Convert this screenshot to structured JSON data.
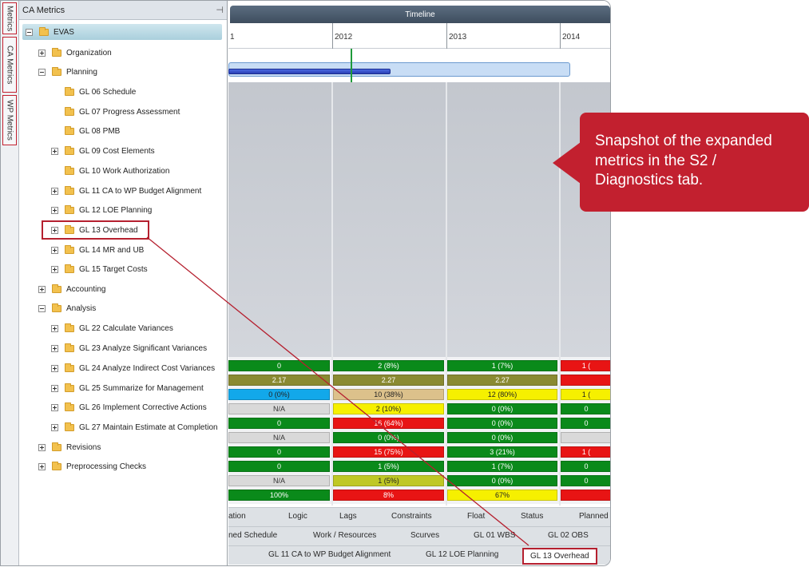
{
  "side_tabs": [
    "Metrics",
    "CA Metrics",
    "WP Metrics"
  ],
  "tree": {
    "header": "CA Metrics",
    "pin_glyph": "⊣",
    "items": [
      {
        "label": "EVAS",
        "expander": "minus"
      },
      {
        "label": "Organization",
        "expander": "plus"
      },
      {
        "label": "Planning",
        "expander": "minus"
      },
      {
        "label": "GL 06 Schedule",
        "expander": "none"
      },
      {
        "label": "GL 07 Progress Assessment",
        "expander": "none"
      },
      {
        "label": "GL 08 PMB",
        "expander": "none"
      },
      {
        "label": "GL 09 Cost Elements",
        "expander": "plus"
      },
      {
        "label": "GL 10 Work Authorization",
        "expander": "none"
      },
      {
        "label": "GL 11 CA to WP Budget Alignment",
        "expander": "plus"
      },
      {
        "label": "GL 12 LOE Planning",
        "expander": "plus"
      },
      {
        "label": "GL 13 Overhead",
        "expander": "plus"
      },
      {
        "label": "GL 14 MR and UB",
        "expander": "plus"
      },
      {
        "label": "GL 15 Target Costs",
        "expander": "plus"
      },
      {
        "label": "Accounting",
        "expander": "plus"
      },
      {
        "label": "Analysis",
        "expander": "minus"
      },
      {
        "label": "GL 22 Calculate Variances",
        "expander": "plus"
      },
      {
        "label": "GL 23 Analyze Significant Variances",
        "expander": "plus"
      },
      {
        "label": "GL 24 Analyze Indirect Cost Variances",
        "expander": "plus"
      },
      {
        "label": "GL 25 Summarize for Management",
        "expander": "plus"
      },
      {
        "label": "GL 26 Implement Corrective Actions",
        "expander": "plus"
      },
      {
        "label": "GL 27 Maintain Estimate at Completion",
        "expander": "plus"
      },
      {
        "label": "Revisions",
        "expander": "plus"
      },
      {
        "label": "Preprocessing Checks",
        "expander": "plus"
      }
    ]
  },
  "timeline": {
    "title": "Timeline",
    "years": [
      "1",
      "2012",
      "2013",
      "2014"
    ]
  },
  "metrics_rows": [
    [
      {
        "t": "0",
        "c": "green"
      },
      {
        "t": "2 (8%)",
        "c": "green"
      },
      {
        "t": "1 (7%)",
        "c": "green"
      },
      {
        "t": "1 (",
        "c": "red"
      }
    ],
    [
      {
        "t": "2.17",
        "c": "olive"
      },
      {
        "t": "2.27",
        "c": "olive"
      },
      {
        "t": "2.27",
        "c": "olive"
      },
      {
        "t": "",
        "c": "red"
      }
    ],
    [
      {
        "t": "0 (0%)",
        "c": "blue"
      },
      {
        "t": "10 (38%)",
        "c": "tan"
      },
      {
        "t": "12 (80%)",
        "c": "yellow"
      },
      {
        "t": "1 (",
        "c": "yellow"
      }
    ],
    [
      {
        "t": "N/A",
        "c": "grey"
      },
      {
        "t": "2 (10%)",
        "c": "yellow"
      },
      {
        "t": "0 (0%)",
        "c": "green"
      },
      {
        "t": "0",
        "c": "green"
      }
    ],
    [
      {
        "t": "0",
        "c": "green"
      },
      {
        "t": "16 (64%)",
        "c": "red"
      },
      {
        "t": "0 (0%)",
        "c": "green"
      },
      {
        "t": "0",
        "c": "green"
      }
    ],
    [
      {
        "t": "N/A",
        "c": "grey"
      },
      {
        "t": "0 (0%)",
        "c": "green"
      },
      {
        "t": "0 (0%)",
        "c": "green"
      },
      {
        "t": "",
        "c": "grey"
      }
    ],
    [
      {
        "t": "0",
        "c": "green"
      },
      {
        "t": "15 (75%)",
        "c": "red"
      },
      {
        "t": "3 (21%)",
        "c": "green"
      },
      {
        "t": "1 (",
        "c": "red"
      }
    ],
    [
      {
        "t": "0",
        "c": "green"
      },
      {
        "t": "1 (5%)",
        "c": "green"
      },
      {
        "t": "1 (7%)",
        "c": "green"
      },
      {
        "t": "0",
        "c": "green"
      }
    ],
    [
      {
        "t": "N/A",
        "c": "grey"
      },
      {
        "t": "1 (5%)",
        "c": "lime"
      },
      {
        "t": "0 (0%)",
        "c": "green"
      },
      {
        "t": "0",
        "c": "green"
      }
    ],
    [
      {
        "t": "100%",
        "c": "green"
      },
      {
        "t": "8%",
        "c": "red"
      },
      {
        "t": "67%",
        "c": "yellow"
      },
      {
        "t": "",
        "c": "red"
      }
    ]
  ],
  "tab_rows": [
    [
      "ation",
      "Logic",
      "Lags",
      "Constraints",
      "Float",
      "Status",
      "Planned"
    ],
    [
      "ned Schedule",
      "Work / Resources",
      "Scurves",
      "GL 01 WBS",
      "GL 02 OBS"
    ],
    [
      "",
      "GL 11 CA to WP Budget Alignment",
      "GL 12 LOE Planning",
      "GL 13 Overhead"
    ]
  ],
  "callout": {
    "text": "Snapshot of the expanded metrics in the S2 / Diagnostics tab."
  },
  "colors": {
    "accent": "#c2202f",
    "green": "#0a8a1a",
    "red": "#e81414",
    "yellow": "#f6f000"
  }
}
